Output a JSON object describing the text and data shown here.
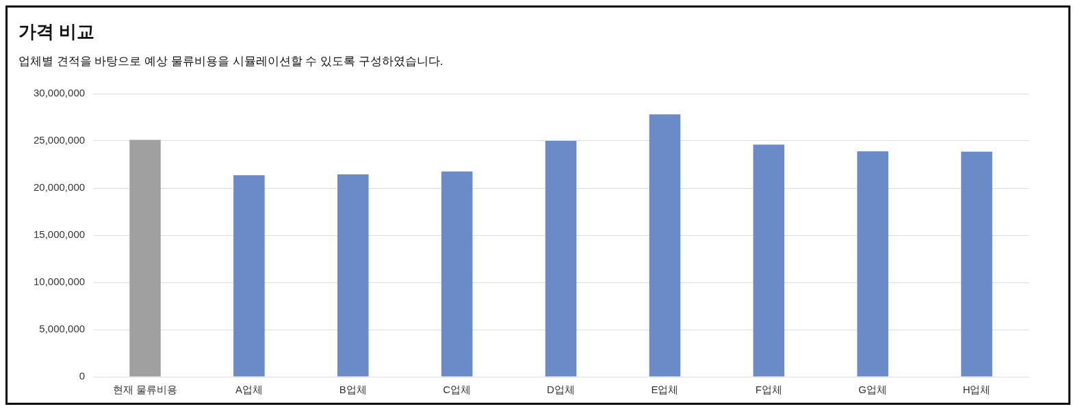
{
  "chart_data": {
    "type": "bar",
    "title": "가격 비교",
    "subtitle": "업체별 견적을 바탕으로 예상 물류비용을 시뮬레이션할 수 있도록 구성하였습니다.",
    "categories": [
      "현재 물류비용",
      "A업체",
      "B업체",
      "C업체",
      "D업체",
      "E업체",
      "F업체",
      "G업체",
      "H업체"
    ],
    "values": [
      25100000,
      21350000,
      21450000,
      21750000,
      25000000,
      27800000,
      24600000,
      23900000,
      23850000
    ],
    "colors": [
      "#a0a0a0",
      "#6a8bc8",
      "#6a8bc8",
      "#6a8bc8",
      "#6a8bc8",
      "#6a8bc8",
      "#6a8bc8",
      "#6a8bc8",
      "#6a8bc8"
    ],
    "ylim": [
      0,
      30000000
    ],
    "yticks": [
      0,
      {
        "value": 5000000,
        "label": "5,000,000"
      },
      {
        "value": 10000000,
        "label": "10,000,000"
      },
      {
        "value": 15000000,
        "label": "15,000,000"
      },
      {
        "value": 20000000,
        "label": "20,000,000"
      },
      {
        "value": 25000000,
        "label": "25,000,000"
      },
      {
        "value": 30000000,
        "label": "30,000,000"
      }
    ],
    "grid": "y",
    "legend": false
  }
}
